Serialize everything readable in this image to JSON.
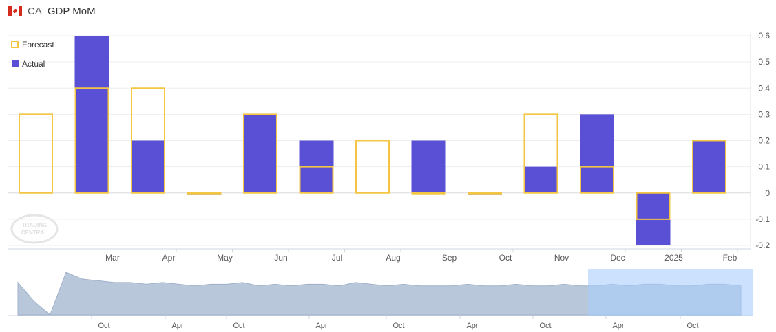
{
  "header": {
    "country": "CA",
    "title": "GDP MoM"
  },
  "legend": {
    "forecast_label": "Forecast",
    "actual_label": "Actual"
  },
  "watermark": "TRADING CENTRAL",
  "colors": {
    "forecast": "#f4c542",
    "actual": "#5a50d6",
    "grid": "#eeeeee",
    "navigator_fill": "#b9c7da",
    "navigator_selection": "#a9cdfc"
  },
  "chart_data": {
    "type": "bar",
    "categories": [
      "",
      "Mar",
      "Apr",
      "May",
      "Jun",
      "Jul",
      "Aug",
      "Sep",
      "Oct",
      "Nov",
      "Dec",
      "2025",
      "Feb"
    ],
    "series": [
      {
        "name": "Forecast",
        "values": [
          0.3,
          0.4,
          0.4,
          0.0,
          0.3,
          0.1,
          0.2,
          0.0,
          0.0,
          0.3,
          0.1,
          -0.1,
          0.2
        ]
      },
      {
        "name": "Actual",
        "values": [
          null,
          0.6,
          0.2,
          0.0,
          0.3,
          0.2,
          null,
          0.2,
          0.0,
          0.1,
          0.3,
          -0.2,
          0.2
        ]
      }
    ],
    "ylim": [
      -0.2,
      0.6
    ],
    "yticks": [
      "0.6",
      "0.5",
      "0.4",
      "0.3",
      "0.2",
      "0.1",
      "0",
      "-0.1",
      "-0.2"
    ],
    "ytick_values": [
      0.6,
      0.5,
      0.4,
      0.3,
      0.2,
      0.1,
      0,
      -0.1,
      -0.2
    ],
    "y_axis_position": "right",
    "grid": true,
    "legend_position": "top-left",
    "navigator": {
      "labels": [
        "Oct",
        "Apr",
        "Oct",
        "Apr",
        "Oct",
        "Apr",
        "Oct",
        "Apr",
        "Oct"
      ],
      "values": [
        0.3,
        -0.8,
        -1.6,
        0.9,
        0.5,
        0.4,
        0.3,
        0.3,
        0.2,
        0.3,
        0.2,
        0.1,
        0.2,
        0.2,
        0.3,
        0.1,
        0.2,
        0.1,
        0.2,
        0.2,
        0.1,
        0.3,
        0.2,
        0.1,
        0.2,
        0.1,
        0.1,
        0.1,
        0.2,
        0.1,
        0.1,
        0.2,
        0.1,
        0.1,
        0.2,
        0.1,
        0.1,
        0.2,
        0.1,
        0.2,
        0.2,
        0.1,
        0.1,
        0.2,
        0.2,
        0.1
      ]
    }
  }
}
